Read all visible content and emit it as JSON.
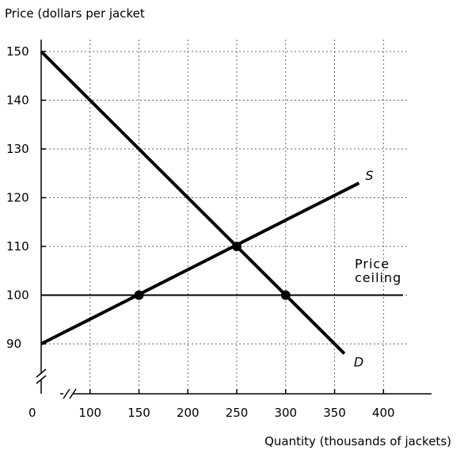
{
  "chart_data": {
    "type": "line",
    "ylabel": "Price (dollars per jacket",
    "xlabel": "Quantity (thousands of jackets)",
    "origin_label": "0",
    "x_ticks": [
      100,
      150,
      200,
      250,
      300,
      350,
      400
    ],
    "x_tick_labels": [
      "100",
      "150",
      "200",
      "250",
      "300",
      "350",
      "400"
    ],
    "y_ticks": [
      90,
      100,
      110,
      120,
      130,
      140,
      150
    ],
    "y_tick_labels": [
      "90",
      "100",
      "110",
      "120",
      "130",
      "140",
      "150"
    ],
    "xlim": [
      50,
      420
    ],
    "ylim": [
      90,
      150
    ],
    "grid": true,
    "axis_breaks": true,
    "series": [
      {
        "name": "S",
        "x": [
          50,
          375
        ],
        "y": [
          90,
          123
        ]
      },
      {
        "name": "D",
        "x": [
          50,
          360
        ],
        "y": [
          150,
          88
        ]
      },
      {
        "name": "Price ceiling",
        "x": [
          50,
          420
        ],
        "y": [
          100,
          100
        ]
      }
    ],
    "points": [
      {
        "x": 150,
        "y": 100
      },
      {
        "x": 250,
        "y": 110
      },
      {
        "x": 300,
        "y": 100
      }
    ],
    "annotations": {
      "supply_label": "S",
      "demand_label": "D",
      "ceiling_line1": "Price",
      "ceiling_line2": "ceiling"
    }
  }
}
